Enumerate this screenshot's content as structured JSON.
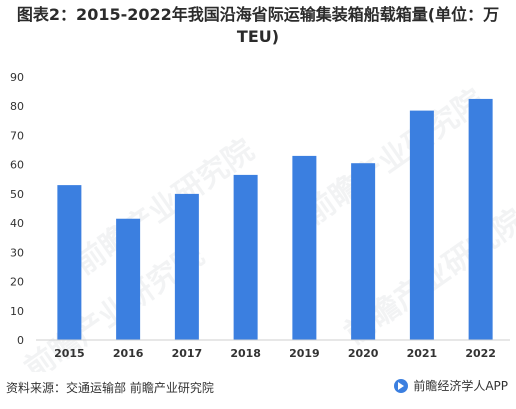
{
  "chart_data": {
    "type": "bar",
    "title": "图表2：2015-2022年我国沿海省际运输集装箱船载箱量(单位：万TEU)",
    "categories": [
      "2015",
      "2016",
      "2017",
      "2018",
      "2019",
      "2020",
      "2021",
      "2022"
    ],
    "values": [
      53,
      41.5,
      50,
      56.5,
      63,
      60.5,
      78.5,
      82.5
    ],
    "ylim": [
      0,
      90
    ],
    "yticks": [
      0,
      10,
      20,
      30,
      40,
      50,
      60,
      70,
      80,
      90
    ],
    "bar_color": "#3b7fe0",
    "grid": false
  },
  "footer": {
    "source": "资料来源：交通运输部 前瞻产业研究院",
    "brand": "前瞻经济学人APP"
  },
  "watermark": {
    "text": "前瞻产业研究院"
  }
}
